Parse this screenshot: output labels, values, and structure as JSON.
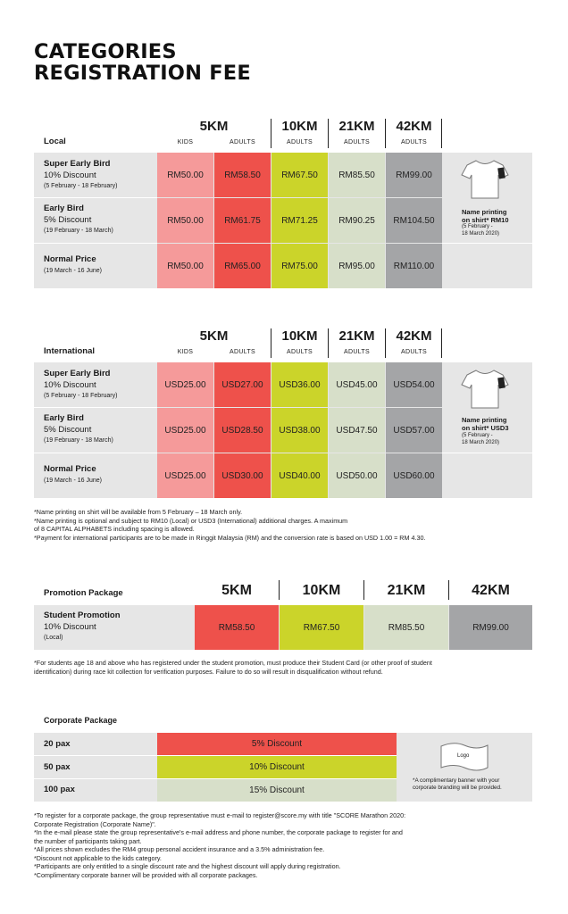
{
  "title": {
    "line1": "CATEGORIES",
    "line2": "REGISTRATION FEE"
  },
  "colors": {
    "kids": "#f59a9a",
    "adults5k": "#ee514b",
    "km10": "#cbd42a",
    "km21": "#d7dfc9",
    "km42": "#a4a5a7",
    "band": "#e6e6e6"
  },
  "columns": {
    "km5": "5KM",
    "km10": "10KM",
    "km21": "21KM",
    "km42": "42KM",
    "kids": "KIDS",
    "adults": "ADULTS"
  },
  "local": {
    "label": "Local",
    "rows": [
      {
        "name": "Super Early Bird",
        "discount": "10% Discount",
        "dates": "(5 February - 18 February)",
        "prices": [
          "RM50.00",
          "RM58.50",
          "RM67.50",
          "RM85.50",
          "RM99.00"
        ]
      },
      {
        "name": "Early Bird",
        "discount": "5% Discount",
        "dates": "(19 February - 18 March)",
        "prices": [
          "RM50.00",
          "RM61.75",
          "RM71.25",
          "RM90.25",
          "RM104.50"
        ]
      },
      {
        "name": "Normal Price",
        "discount": "",
        "dates": "(19 March - 16 June)",
        "prices": [
          "RM50.00",
          "RM65.00",
          "RM75.00",
          "RM95.00",
          "RM110.00"
        ]
      }
    ],
    "shirt": {
      "line1": "Name printing",
      "line2": "on shirt* RM10",
      "sub1": "(5 February  -",
      "sub2": "18 March 2020)",
      "icon": "tshirt-icon"
    }
  },
  "international": {
    "label": "International",
    "rows": [
      {
        "name": "Super Early Bird",
        "discount": "10% Discount",
        "dates": "(5 February - 18 February)",
        "prices": [
          "USD25.00",
          "USD27.00",
          "USD36.00",
          "USD45.00",
          "USD54.00"
        ]
      },
      {
        "name": "Early Bird",
        "discount": "5% Discount",
        "dates": "(19 February - 18 March)",
        "prices": [
          "USD25.00",
          "USD28.50",
          "USD38.00",
          "USD47.50",
          "USD57.00"
        ]
      },
      {
        "name": "Normal Price",
        "discount": "",
        "dates": "(19 March - 16 June)",
        "prices": [
          "USD25.00",
          "USD30.00",
          "USD40.00",
          "USD50.00",
          "USD60.00"
        ]
      }
    ],
    "shirt": {
      "line1": "Name printing",
      "line2": "on shirt* USD3",
      "sub1": "(5 February  -",
      "sub2": "18 March 2020)",
      "icon": "tshirt-icon"
    }
  },
  "notes1": [
    "*Name printing on shirt will be available from 5 February – 18 March only.",
    "*Name printing is optional and subject to RM10 (Local) or USD3 (International) additional charges. A maximum",
    "  of 8 CAPITAL ALPHABETS including spacing is allowed.",
    "*Payment for international participants are to be made in Ringgit Malaysia (RM) and the conversion rate is based on USD 1.00 = RM 4.30."
  ],
  "promotion": {
    "label": "Promotion Package",
    "name": "Student Promotion",
    "discount": "10% Discount",
    "scope": "(Local)",
    "prices": [
      "RM58.50",
      "RM67.50",
      "RM85.50",
      "RM99.00"
    ]
  },
  "notes2": [
    "*For students age 18 and above who has registered under the student promotion, must produce their Student Card (or other proof of student",
    "  identification) during race kit collection for verification purposes. Failure to do so will result in disqualification without refund."
  ],
  "corporate": {
    "label": "Corporate Package",
    "rows": [
      {
        "pax": "20 pax",
        "discount": "5% Discount"
      },
      {
        "pax": "50 pax",
        "discount": "10% Discount"
      },
      {
        "pax": "100 pax",
        "discount": "15% Discount"
      }
    ],
    "logo_label": "Logo",
    "banner_note1": "*A complimentary banner with your",
    "banner_note2": "corporate branding will be provided."
  },
  "notes3": [
    "*To register for a corporate package, the group representative must e-mail to register@score.my with title \"SCORE Marathon 2020:",
    "  Corporate Registration (Corporate Name)\".",
    "*In the e-mail please state the group representative's e-mail address and phone number, the corporate package to register for and",
    "  the number of participants taking part.",
    "*All prices shown excludes the RM4 group personal accident insurance and a 3.5% administration fee.",
    "*Discount not applicable to the kids category.",
    "*Participants are only entitled to a single discount rate and the highest discount will apply during registration.",
    "*Complimentary corporate banner will be provided with all corporate packages."
  ]
}
